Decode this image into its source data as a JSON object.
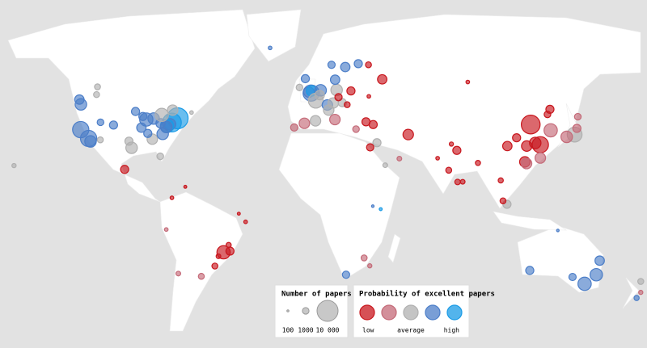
{
  "map": {
    "size_legend": {
      "title": "Number of papers",
      "ticks": [
        100,
        1000,
        {
          "value": 10000,
          "label": "10 000"
        }
      ]
    },
    "color_legend": {
      "title": "Probability of excellent papers",
      "items": [
        {
          "color": "#c8171e",
          "label": "low"
        },
        {
          "color": "#c46a78"
        },
        {
          "color": "#b0b0b0",
          "label": "average"
        },
        {
          "color": "#4c7ec8"
        },
        {
          "color": "#1a9be6",
          "label": "high"
        }
      ]
    },
    "points": [
      {
        "lon": -71,
        "lat": 42.4,
        "papers": 10000,
        "color": "#1a9be6"
      },
      {
        "lon": -74,
        "lat": 40.7,
        "papers": 8000,
        "color": "#1a9be6"
      },
      {
        "lon": -75,
        "lat": 40,
        "papers": 3000,
        "color": "#4c7ec8"
      },
      {
        "lon": -76.6,
        "lat": 39.3,
        "papers": 4000,
        "color": "#1a9be6"
      },
      {
        "lon": -77,
        "lat": 38.9,
        "papers": 3000,
        "color": "#4c7ec8"
      },
      {
        "lon": -87.6,
        "lat": 41.9,
        "papers": 4000,
        "color": "#4c7ec8"
      },
      {
        "lon": -83.7,
        "lat": 42.3,
        "papers": 3000,
        "color": "#4c7ec8"
      },
      {
        "lon": -80,
        "lat": 40.4,
        "papers": 2000,
        "color": "#4c7ec8"
      },
      {
        "lon": -84.4,
        "lat": 33.7,
        "papers": 2500,
        "color": "#b0b0b0"
      },
      {
        "lon": -95.4,
        "lat": 29.8,
        "papers": 3000,
        "color": "#b0b0b0"
      },
      {
        "lon": -96.8,
        "lat": 32.8,
        "papers": 1500,
        "color": "#b0b0b0"
      },
      {
        "lon": -78.9,
        "lat": 36,
        "papers": 3000,
        "color": "#4c7ec8"
      },
      {
        "lon": -86.8,
        "lat": 36.2,
        "papers": 1500,
        "color": "#4c7ec8"
      },
      {
        "lon": -90.2,
        "lat": 38.6,
        "papers": 2000,
        "color": "#4c7ec8"
      },
      {
        "lon": -93.3,
        "lat": 45,
        "papers": 1500,
        "color": "#4c7ec8"
      },
      {
        "lon": -89.4,
        "lat": 43.1,
        "papers": 1500,
        "color": "#4c7ec8"
      },
      {
        "lon": -105,
        "lat": 39.7,
        "papers": 1500,
        "color": "#4c7ec8"
      },
      {
        "lon": -111.9,
        "lat": 40.8,
        "papers": 1000,
        "color": "#4c7ec8"
      },
      {
        "lon": -122.3,
        "lat": 47.6,
        "papers": 3000,
        "color": "#4c7ec8"
      },
      {
        "lon": -122.4,
        "lat": 37.8,
        "papers": 6000,
        "color": "#4c7ec8"
      },
      {
        "lon": -118.2,
        "lat": 34,
        "papers": 6000,
        "color": "#4c7ec8"
      },
      {
        "lon": -117.2,
        "lat": 32.7,
        "papers": 3000,
        "color": "#4c7ec8"
      },
      {
        "lon": -112,
        "lat": 33.4,
        "papers": 800,
        "color": "#b0b0b0"
      },
      {
        "lon": -79.4,
        "lat": 43.7,
        "papers": 4000,
        "color": "#b0b0b0"
      },
      {
        "lon": -73.6,
        "lat": 45.5,
        "papers": 2500,
        "color": "#b0b0b0"
      },
      {
        "lon": -123.1,
        "lat": 49.3,
        "papers": 2000,
        "color": "#4c7ec8"
      },
      {
        "lon": -114,
        "lat": 51,
        "papers": 800,
        "color": "#b0b0b0"
      },
      {
        "lon": -113.5,
        "lat": 53.5,
        "papers": 800,
        "color": "#b0b0b0"
      },
      {
        "lon": -63.6,
        "lat": 44.6,
        "papers": 300,
        "color": "#b0b0b0"
      },
      {
        "lon": -80.2,
        "lat": 25.8,
        "papers": 1000,
        "color": "#b0b0b0"
      },
      {
        "lon": -99.1,
        "lat": 19.4,
        "papers": 1500,
        "color": "#c8171e"
      },
      {
        "lon": -157.8,
        "lat": 21.3,
        "papers": 400,
        "color": "#b0b0b0"
      },
      {
        "lon": -74,
        "lat": 4.7,
        "papers": 300,
        "color": "#c8171e"
      },
      {
        "lon": -66.9,
        "lat": 10.5,
        "papers": 200,
        "color": "#c8171e"
      },
      {
        "lon": -77,
        "lat": -12,
        "papers": 300,
        "color": "#c46a78"
      },
      {
        "lon": -70.6,
        "lat": -33.4,
        "papers": 500,
        "color": "#c46a78"
      },
      {
        "lon": -58.4,
        "lat": -34.6,
        "papers": 800,
        "color": "#c46a78"
      },
      {
        "lon": -46.6,
        "lat": -23.5,
        "papers": 4000,
        "color": "#c8171e"
      },
      {
        "lon": -43.2,
        "lat": -22.9,
        "papers": 1500,
        "color": "#c8171e"
      },
      {
        "lon": -51.2,
        "lat": -30,
        "papers": 800,
        "color": "#c8171e"
      },
      {
        "lon": -34.9,
        "lat": -8,
        "papers": 300,
        "color": "#c8171e"
      },
      {
        "lon": -38.5,
        "lat": -3.7,
        "papers": 200,
        "color": "#c8171e"
      },
      {
        "lon": -43.9,
        "lat": -19.9,
        "papers": 600,
        "color": "#c8171e"
      },
      {
        "lon": -49.3,
        "lat": -25.4,
        "papers": 500,
        "color": "#c8171e"
      },
      {
        "lon": -0.1,
        "lat": 51.5,
        "papers": 6000,
        "color": "#4c7ec8"
      },
      {
        "lon": -1.3,
        "lat": 51.8,
        "papers": 2500,
        "color": "#4c7ec8"
      },
      {
        "lon": 0.1,
        "lat": 52.2,
        "papers": 2500,
        "color": "#1a9be6"
      },
      {
        "lon": -3.2,
        "lat": 56,
        "papers": 1500,
        "color": "#4c7ec8"
      },
      {
        "lon": -6.3,
        "lat": 53.3,
        "papers": 1000,
        "color": "#b0b0b0"
      },
      {
        "lon": 2.35,
        "lat": 48.9,
        "papers": 5000,
        "color": "#b0b0b0"
      },
      {
        "lon": 4.9,
        "lat": 52.4,
        "papers": 3000,
        "color": "#4c7ec8"
      },
      {
        "lon": 4.4,
        "lat": 50.8,
        "papers": 2000,
        "color": "#b0b0b0"
      },
      {
        "lon": 8.5,
        "lat": 47.4,
        "papers": 2500,
        "color": "#4c7ec8"
      },
      {
        "lon": 11.6,
        "lat": 48.1,
        "papers": 2500,
        "color": "#b0b0b0"
      },
      {
        "lon": 13.4,
        "lat": 52.5,
        "papers": 3000,
        "color": "#b0b0b0"
      },
      {
        "lon": 12.6,
        "lat": 55.7,
        "papers": 2000,
        "color": "#4c7ec8"
      },
      {
        "lon": 18,
        "lat": 59.3,
        "papers": 2000,
        "color": "#4c7ec8"
      },
      {
        "lon": 10.7,
        "lat": 59.9,
        "papers": 1200,
        "color": "#4c7ec8"
      },
      {
        "lon": 24.9,
        "lat": 60.2,
        "papers": 1500,
        "color": "#4c7ec8"
      },
      {
        "lon": -3.7,
        "lat": 40.4,
        "papers": 2500,
        "color": "#c46a78"
      },
      {
        "lon": 2.2,
        "lat": 41.4,
        "papers": 2500,
        "color": "#b0b0b0"
      },
      {
        "lon": -9.1,
        "lat": 38.7,
        "papers": 1200,
        "color": "#c46a78"
      },
      {
        "lon": 12.5,
        "lat": 41.9,
        "papers": 2500,
        "color": "#c46a78"
      },
      {
        "lon": 9.2,
        "lat": 45.5,
        "papers": 2500,
        "color": "#b0b0b0"
      },
      {
        "lon": 16.4,
        "lat": 48.2,
        "papers": 1500,
        "color": "#b0b0b0"
      },
      {
        "lon": 21,
        "lat": 52.2,
        "papers": 1500,
        "color": "#c8171e"
      },
      {
        "lon": 14.4,
        "lat": 50.1,
        "papers": 1200,
        "color": "#c8171e"
      },
      {
        "lon": 19,
        "lat": 47.5,
        "papers": 800,
        "color": "#c8171e"
      },
      {
        "lon": 23.7,
        "lat": 38,
        "papers": 1000,
        "color": "#c46a78"
      },
      {
        "lon": 29,
        "lat": 41,
        "papers": 1500,
        "color": "#c8171e"
      },
      {
        "lon": 32.8,
        "lat": 39.9,
        "papers": 1500,
        "color": "#c8171e"
      },
      {
        "lon": 37.6,
        "lat": 55.8,
        "papers": 2000,
        "color": "#c8171e"
      },
      {
        "lon": 30.3,
        "lat": 59.9,
        "papers": 800,
        "color": "#c8171e"
      },
      {
        "lon": 30.5,
        "lat": 50.4,
        "papers": 300,
        "color": "#c8171e"
      },
      {
        "lon": 83,
        "lat": 55,
        "papers": 300,
        "color": "#c8171e"
      },
      {
        "lon": -21.9,
        "lat": 64.1,
        "papers": 300,
        "color": "#4c7ec8"
      },
      {
        "lon": 34.8,
        "lat": 32.1,
        "papers": 1500,
        "color": "#b0b0b0"
      },
      {
        "lon": 31.2,
        "lat": 30,
        "papers": 1200,
        "color": "#c8171e"
      },
      {
        "lon": 51.4,
        "lat": 35.7,
        "papers": 2500,
        "color": "#c8171e"
      },
      {
        "lon": 46.7,
        "lat": 24.7,
        "papers": 500,
        "color": "#c46a78"
      },
      {
        "lon": 39.2,
        "lat": 21.5,
        "papers": 500,
        "color": "#b0b0b0"
      },
      {
        "lon": 77.2,
        "lat": 28.6,
        "papers": 1500,
        "color": "#c8171e"
      },
      {
        "lon": 72.9,
        "lat": 19,
        "papers": 800,
        "color": "#c8171e"
      },
      {
        "lon": 88.4,
        "lat": 22.6,
        "papers": 600,
        "color": "#c8171e"
      },
      {
        "lon": 77.6,
        "lat": 13,
        "papers": 700,
        "color": "#c8171e"
      },
      {
        "lon": 80.3,
        "lat": 13.1,
        "papers": 500,
        "color": "#c8171e"
      },
      {
        "lon": 67,
        "lat": 24.9,
        "papers": 300,
        "color": "#c8171e"
      },
      {
        "lon": 74.3,
        "lat": 31.5,
        "papers": 400,
        "color": "#c8171e"
      },
      {
        "lon": 116.4,
        "lat": 39.9,
        "papers": 8000,
        "color": "#c8171e"
      },
      {
        "lon": 121.5,
        "lat": 31.2,
        "papers": 6000,
        "color": "#c8171e"
      },
      {
        "lon": 118.8,
        "lat": 32,
        "papers": 3000,
        "color": "#c8171e"
      },
      {
        "lon": 114.3,
        "lat": 30.6,
        "papers": 2500,
        "color": "#c8171e"
      },
      {
        "lon": 113.3,
        "lat": 23.1,
        "papers": 2500,
        "color": "#c8171e"
      },
      {
        "lon": 114.2,
        "lat": 22.3,
        "papers": 2500,
        "color": "#c46a78"
      },
      {
        "lon": 104,
        "lat": 30.6,
        "papers": 2000,
        "color": "#c8171e"
      },
      {
        "lon": 108.9,
        "lat": 34.3,
        "papers": 1500,
        "color": "#c8171e"
      },
      {
        "lon": 126.6,
        "lat": 45.8,
        "papers": 1500,
        "color": "#c8171e"
      },
      {
        "lon": 125.3,
        "lat": 43.9,
        "papers": 1000,
        "color": "#c8171e"
      },
      {
        "lon": 127,
        "lat": 37.5,
        "papers": 4000,
        "color": "#c46a78"
      },
      {
        "lon": 139.7,
        "lat": 35.7,
        "papers": 5000,
        "color": "#b0b0b0"
      },
      {
        "lon": 135.5,
        "lat": 34.7,
        "papers": 3000,
        "color": "#c46a78"
      },
      {
        "lon": 140.9,
        "lat": 38.3,
        "papers": 1500,
        "color": "#c46a78"
      },
      {
        "lon": 141.4,
        "lat": 43,
        "papers": 1000,
        "color": "#c46a78"
      },
      {
        "lon": 121.5,
        "lat": 25,
        "papers": 2500,
        "color": "#c46a78"
      },
      {
        "lon": 100.5,
        "lat": 13.8,
        "papers": 600,
        "color": "#c8171e"
      },
      {
        "lon": 103.8,
        "lat": 1.3,
        "papers": 1500,
        "color": "#b0b0b0"
      },
      {
        "lon": 101.7,
        "lat": 3.1,
        "papers": 800,
        "color": "#c8171e"
      },
      {
        "lon": 36.8,
        "lat": -1.3,
        "papers": 200,
        "color": "#1a9be6"
      },
      {
        "lon": 32.6,
        "lat": 0.3,
        "papers": 150,
        "color": "#4c7ec8"
      },
      {
        "lon": 28,
        "lat": -26.2,
        "papers": 800,
        "color": "#c46a78"
      },
      {
        "lon": 18.4,
        "lat": -33.9,
        "papers": 1200,
        "color": "#4c7ec8"
      },
      {
        "lon": 31,
        "lat": -29.9,
        "papers": 400,
        "color": "#c46a78"
      },
      {
        "lon": 115.9,
        "lat": -32,
        "papers": 1500,
        "color": "#4c7ec8"
      },
      {
        "lon": 138.6,
        "lat": -34.9,
        "papers": 1200,
        "color": "#4c7ec8"
      },
      {
        "lon": 145,
        "lat": -37.8,
        "papers": 4000,
        "color": "#4c7ec8"
      },
      {
        "lon": 151.2,
        "lat": -33.9,
        "papers": 3500,
        "color": "#4c7ec8"
      },
      {
        "lon": 153,
        "lat": -27.5,
        "papers": 2000,
        "color": "#4c7ec8"
      },
      {
        "lon": 174.8,
        "lat": -36.8,
        "papers": 800,
        "color": "#b0b0b0"
      },
      {
        "lon": 172.6,
        "lat": -43.5,
        "papers": 600,
        "color": "#4c7ec8"
      },
      {
        "lon": 174.8,
        "lat": -41.3,
        "papers": 400,
        "color": "#c46a78"
      },
      {
        "lon": 130.8,
        "lat": -12.5,
        "papers": 150,
        "color": "#4c7ec8"
      }
    ]
  }
}
